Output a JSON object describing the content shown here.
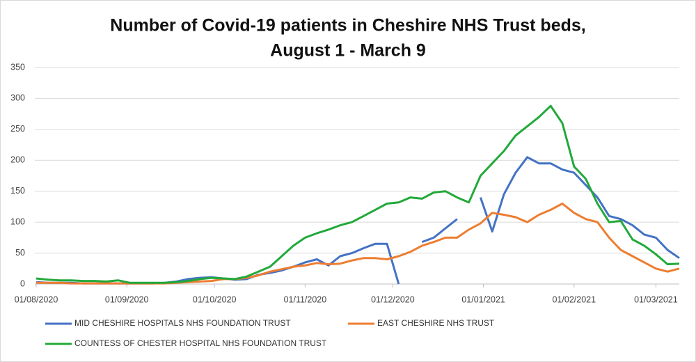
{
  "chart_data": {
    "type": "line",
    "title": [
      "Number of Covid-19 patients in Cheshire NHS Trust beds,",
      "August 1 - March 9"
    ],
    "x": [
      "01/08/2020",
      "05/08/2020",
      "09/08/2020",
      "13/08/2020",
      "17/08/2020",
      "21/08/2020",
      "25/08/2020",
      "29/08/2020",
      "02/09/2020",
      "06/09/2020",
      "10/09/2020",
      "14/09/2020",
      "18/09/2020",
      "22/09/2020",
      "26/09/2020",
      "30/09/2020",
      "04/10/2020",
      "08/10/2020",
      "12/10/2020",
      "16/10/2020",
      "20/10/2020",
      "24/10/2020",
      "28/10/2020",
      "01/11/2020",
      "05/11/2020",
      "09/11/2020",
      "13/11/2020",
      "17/11/2020",
      "21/11/2020",
      "25/11/2020",
      "29/11/2020",
      "03/12/2020",
      "07/12/2020",
      "11/12/2020",
      "15/12/2020",
      "19/12/2020",
      "23/12/2020",
      "27/12/2020",
      "31/12/2020",
      "04/01/2021",
      "08/01/2021",
      "12/01/2021",
      "16/01/2021",
      "20/01/2021",
      "24/01/2021",
      "28/01/2021",
      "01/02/2021",
      "05/02/2021",
      "09/02/2021",
      "13/02/2021",
      "17/02/2021",
      "21/02/2021",
      "25/02/2021",
      "01/03/2021",
      "05/03/2021",
      "09/03/2021"
    ],
    "series": [
      {
        "name": "MID CHESHIRE HOSPITALS NHS FOUNDATION TRUST",
        "color": "#4472c4",
        "values": [
          3,
          2,
          2,
          2,
          1,
          1,
          1,
          1,
          1,
          1,
          1,
          2,
          4,
          8,
          10,
          11,
          9,
          7,
          8,
          15,
          18,
          22,
          28,
          35,
          40,
          30,
          45,
          50,
          58,
          65,
          65,
          0,
          null,
          68,
          75,
          90,
          105,
          null,
          140,
          85,
          145,
          180,
          205,
          195,
          195,
          185,
          180,
          160,
          140,
          110,
          105,
          95,
          80,
          75,
          55,
          42
        ]
      },
      {
        "name": "EAST CHESHIRE NHS TRUST",
        "color": "#ed7d31",
        "values": [
          2,
          2,
          2,
          1,
          1,
          1,
          1,
          1,
          1,
          1,
          1,
          1,
          2,
          3,
          4,
          5,
          8,
          8,
          10,
          14,
          20,
          24,
          28,
          30,
          34,
          32,
          33,
          38,
          42,
          42,
          40,
          45,
          52,
          62,
          68,
          75,
          75,
          88,
          98,
          115,
          112,
          108,
          100,
          112,
          120,
          130,
          115,
          105,
          100,
          75,
          55,
          45,
          35,
          25,
          20,
          25
        ]
      },
      {
        "name": "COUNTESS OF CHESTER HOSPITAL NHS FOUNDATION TRUST",
        "color": "#22a93a",
        "values": [
          9,
          7,
          6,
          6,
          5,
          5,
          4,
          6,
          2,
          2,
          2,
          2,
          3,
          5,
          8,
          10,
          9,
          8,
          12,
          20,
          28,
          45,
          62,
          75,
          82,
          88,
          95,
          100,
          110,
          120,
          130,
          132,
          140,
          138,
          148,
          150,
          140,
          132,
          175,
          195,
          215,
          240,
          255,
          270,
          288,
          260,
          190,
          170,
          130,
          100,
          102,
          72,
          62,
          48,
          32,
          33
        ]
      }
    ],
    "xlim": [
      "01/08/2020",
      "09/03/2021"
    ],
    "xticks": [
      "01/08/2020",
      "01/09/2020",
      "01/10/2020",
      "01/11/2020",
      "01/12/2020",
      "01/01/2021",
      "01/02/2021",
      "01/03/2021"
    ],
    "ylim": [
      0,
      350
    ],
    "yticks": [
      0,
      50,
      100,
      150,
      200,
      250,
      300,
      350
    ],
    "grid": true
  }
}
